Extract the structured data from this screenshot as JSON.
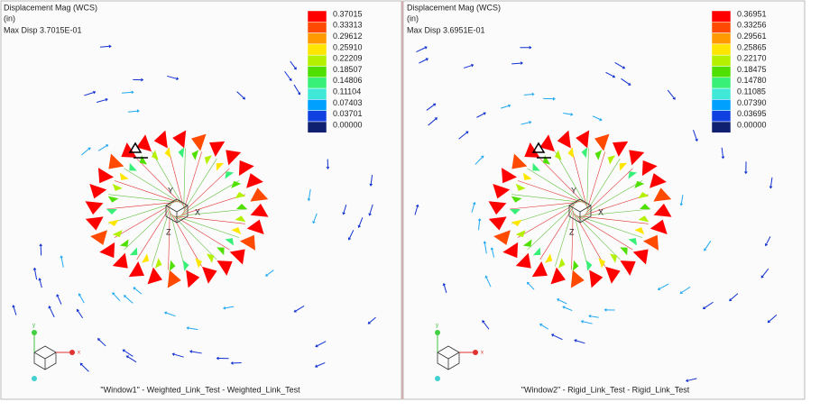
{
  "windows": [
    {
      "title": "Displacement Mag (WCS)",
      "unit": "(in)",
      "max_disp": "Max Disp  3.7015E-01",
      "legend": [
        "0.37015",
        "0.33313",
        "0.29612",
        "0.25910",
        "0.22209",
        "0.18507",
        "0.14806",
        "0.11104",
        "0.07403",
        "0.03701",
        "0.00000"
      ],
      "model_triad": [
        "Y",
        "X",
        "Z"
      ],
      "view_triad": [
        "y",
        "x"
      ],
      "caption": "\"Window1\" - Weighted_Link_Test - Weighted_Link_Test"
    },
    {
      "title": "Displacement Mag (WCS)",
      "unit": "(in)",
      "max_disp": "Max Disp  3.6951E-01",
      "legend": [
        "0.36951",
        "0.33256",
        "0.29561",
        "0.25865",
        "0.22170",
        "0.18475",
        "0.14780",
        "0.11085",
        "0.07390",
        "0.03695",
        "0.00000"
      ],
      "model_triad": [
        "Y",
        "X",
        "Z"
      ],
      "view_triad": [
        "y",
        "x"
      ],
      "caption": "\"Window2\" - Rigid_Link_Test - Rigid_Link_Test"
    }
  ]
}
